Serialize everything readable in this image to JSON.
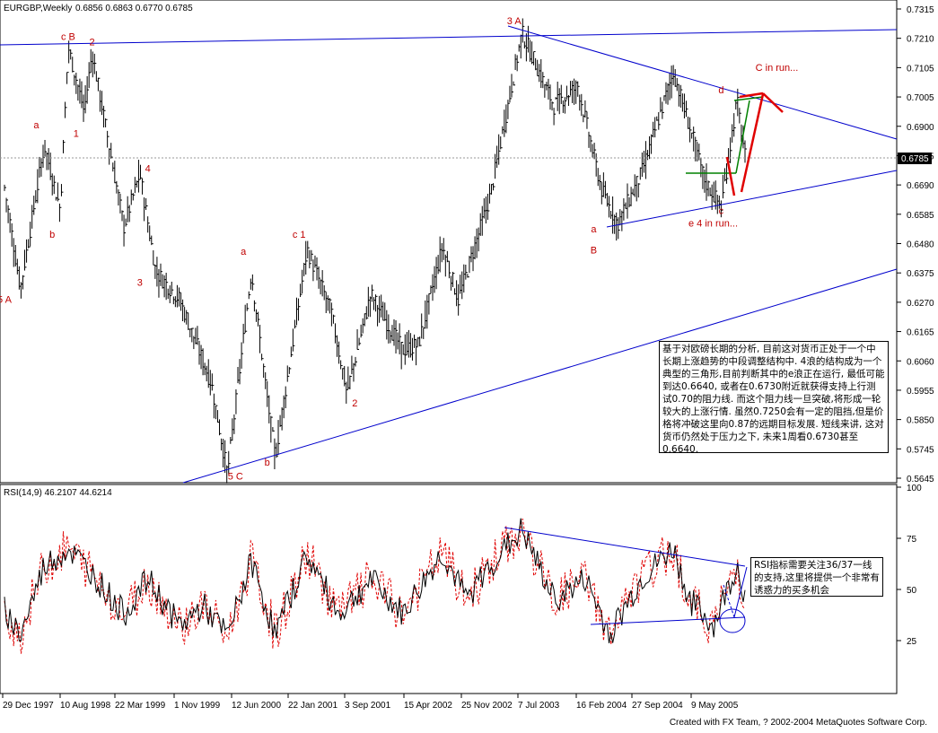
{
  "window": {
    "symbol": "EURGBP,Weekly",
    "quote": "0.6856 0.6863 0.6770 0.6785",
    "current_price": "0.6785",
    "footer": "Created with FX Team, ? 2002-2004 MetaQuotes Software Corp."
  },
  "chart_data": [
    {
      "type": "bar",
      "title": "EURGBP,Weekly",
      "y_ticks": [
        "0.7315",
        "0.7210",
        "0.7105",
        "0.7005",
        "0.6900",
        "0.6795",
        "0.6690",
        "0.6585",
        "0.6480",
        "0.6375",
        "0.6270",
        "0.6165",
        "0.6060",
        "0.5955",
        "0.5850",
        "0.5745",
        "0.5645"
      ],
      "ylim": [
        0.5645,
        0.7315
      ],
      "x_ticks": [
        "29 Dec 1997",
        "10 Aug 1998",
        "22 Mar 1999",
        "1 Nov 1999",
        "12 Jun 2000",
        "22 Jan 2001",
        "3 Sep 2001",
        "15 Apr 2002",
        "25 Nov 2002",
        "7 Jul 2003",
        "16 Feb 2004",
        "27 Sep 2004",
        "9 May 2005"
      ],
      "current_price": 0.6785,
      "swing_points": [
        {
          "date": "1997-12",
          "price": 0.668
        },
        {
          "date": "1998-02",
          "price": 0.632
        },
        {
          "date": "1998-05",
          "price": 0.683
        },
        {
          "date": "1998-07",
          "price": 0.66
        },
        {
          "date": "1998-08",
          "price": 0.718
        },
        {
          "date": "1998-10",
          "price": 0.695
        },
        {
          "date": "1998-11",
          "price": 0.716
        },
        {
          "date": "1999-03",
          "price": 0.654
        },
        {
          "date": "1999-05",
          "price": 0.673
        },
        {
          "date": "1999-07",
          "price": 0.638
        },
        {
          "date": "1999-10",
          "price": 0.628
        },
        {
          "date": "2000-02",
          "price": 0.598
        },
        {
          "date": "2000-04",
          "price": 0.566
        },
        {
          "date": "2000-07",
          "price": 0.638
        },
        {
          "date": "2000-09",
          "price": 0.593
        },
        {
          "date": "2000-10",
          "price": 0.572
        },
        {
          "date": "2001-02",
          "price": 0.646
        },
        {
          "date": "2001-05",
          "price": 0.624
        },
        {
          "date": "2001-07",
          "price": 0.595
        },
        {
          "date": "2001-10",
          "price": 0.63
        },
        {
          "date": "2002-02",
          "price": 0.61
        },
        {
          "date": "2002-04",
          "price": 0.612
        },
        {
          "date": "2002-07",
          "price": 0.647
        },
        {
          "date": "2002-09",
          "price": 0.628
        },
        {
          "date": "2003-01",
          "price": 0.665
        },
        {
          "date": "2003-05",
          "price": 0.723
        },
        {
          "date": "2003-09",
          "price": 0.697
        },
        {
          "date": "2003-12",
          "price": 0.704
        },
        {
          "date": "2004-03",
          "price": 0.667
        },
        {
          "date": "2004-05",
          "price": 0.655
        },
        {
          "date": "2004-08",
          "price": 0.673
        },
        {
          "date": "2004-12",
          "price": 0.709
        },
        {
          "date": "2005-02",
          "price": 0.69
        },
        {
          "date": "2005-04",
          "price": 0.67
        },
        {
          "date": "2005-06",
          "price": 0.661
        },
        {
          "date": "2005-08",
          "price": 0.699
        },
        {
          "date": "2005-09",
          "price": 0.679
        }
      ]
    },
    {
      "type": "line",
      "title": "RSI(14,9) 46.2107 44.6214",
      "y_ticks": [
        "100",
        "75",
        "50",
        "25"
      ],
      "ylim": [
        0,
        100
      ],
      "series_values": [
        46.2107,
        44.6214
      ],
      "swing_points": [
        {
          "date": "1997-12",
          "value": 40
        },
        {
          "date": "1998-02",
          "value": 28
        },
        {
          "date": "1998-05",
          "value": 62
        },
        {
          "date": "1998-08",
          "value": 70
        },
        {
          "date": "1998-11",
          "value": 58
        },
        {
          "date": "1999-03",
          "value": 38
        },
        {
          "date": "1999-06",
          "value": 55
        },
        {
          "date": "1999-10",
          "value": 32
        },
        {
          "date": "2000-01",
          "value": 42
        },
        {
          "date": "2000-04",
          "value": 27
        },
        {
          "date": "2000-07",
          "value": 64
        },
        {
          "date": "2000-10",
          "value": 28
        },
        {
          "date": "2001-02",
          "value": 67
        },
        {
          "date": "2001-06",
          "value": 38
        },
        {
          "date": "2001-10",
          "value": 55
        },
        {
          "date": "2002-02",
          "value": 38
        },
        {
          "date": "2002-07",
          "value": 68
        },
        {
          "date": "2002-10",
          "value": 45
        },
        {
          "date": "2003-01",
          "value": 62
        },
        {
          "date": "2003-05",
          "value": 79
        },
        {
          "date": "2003-09",
          "value": 45
        },
        {
          "date": "2004-01",
          "value": 55
        },
        {
          "date": "2004-04",
          "value": 28
        },
        {
          "date": "2004-08",
          "value": 55
        },
        {
          "date": "2004-12",
          "value": 70
        },
        {
          "date": "2005-02",
          "value": 45
        },
        {
          "date": "2005-05",
          "value": 32
        },
        {
          "date": "2005-08",
          "value": 62
        },
        {
          "date": "2005-09",
          "value": 46
        }
      ]
    }
  ],
  "wave_labels": [
    {
      "text": "5 A",
      "date": "1997-12",
      "price": 0.627
    },
    {
      "text": "a",
      "date": "1998-04",
      "price": 0.689
    },
    {
      "text": "b",
      "date": "1998-06",
      "price": 0.65
    },
    {
      "text": "c B",
      "date": "1998-08",
      "price": 0.7205
    },
    {
      "text": "2",
      "date": "1998-11",
      "price": 0.7185
    },
    {
      "text": "1",
      "date": "1998-09",
      "price": 0.686
    },
    {
      "text": "4",
      "date": "1999-06",
      "price": 0.6735
    },
    {
      "text": "3",
      "date": "1999-05",
      "price": 0.633
    },
    {
      "text": "a",
      "date": "2000-06",
      "price": 0.644
    },
    {
      "text": "5 C",
      "date": "2000-05",
      "price": 0.564
    },
    {
      "text": "b",
      "date": "2000-09",
      "price": 0.569
    },
    {
      "text": "c 1",
      "date": "2001-01",
      "price": 0.65
    },
    {
      "text": "2",
      "date": "2001-08",
      "price": 0.59
    },
    {
      "text": "3  A",
      "date": "2003-04",
      "price": 0.726
    },
    {
      "text": "d",
      "date": "2005-06",
      "price": 0.7015
    },
    {
      "text": "c",
      "date": "2005-06",
      "price": 0.6585
    },
    {
      "text": "a",
      "date": "2004-02",
      "price": 0.652
    },
    {
      "text": "B",
      "date": "2004-02",
      "price": 0.6445
    },
    {
      "text": "e 4 in run...",
      "date": "2005-05",
      "price": 0.654
    },
    {
      "text": "C in run...",
      "date": "2006-01",
      "price": 0.7095
    }
  ],
  "rsi_header": "RSI(14,9) 46.2107 44.6214",
  "notes": {
    "main": "基于对欧磅长期的分析, 目前这对货币正处于一个中长期上涨趋势的中段调整结构中. 4浪的结构成为一个典型的三角形,目前判断其中的e浪正在运行, 最低可能到达0.6640, 或者在0.6730附近就获得支持上行测试0.70的阻力线. 而这个阻力线一旦突破,将形成一轮较大的上涨行情. 虽然0.7250会有一定的阻挡,但是价格将冲破这里向0.87的远期目标发展. 短线来讲, 这对货币仍然处于压力之下, 未来1周看0.6730甚至0.6640.",
    "rsi": "RSI指标需要关注36/37一线的支持,这里将提供一个非常有诱惑力的买多机会"
  },
  "colors": {
    "price_bar": "#000000",
    "trendline": "#0000cc",
    "wave_label": "#c00000",
    "forecast_red": "#e00000",
    "forecast_green": "#008000",
    "rsi_main": "#000000",
    "rsi_signal": "#e00000",
    "price_marker_bg": "#000000"
  }
}
